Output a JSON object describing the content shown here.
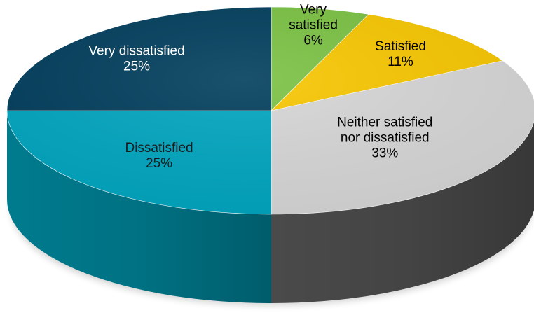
{
  "chart_data": {
    "type": "pie",
    "style": "3d",
    "start_angle_deg": 0,
    "direction": "clockwise",
    "slices": [
      {
        "name_lines": [
          "Very",
          "satisfied"
        ],
        "value": 6,
        "label": "6%",
        "color": "#7ac143",
        "side_color": "#4f8a22",
        "text_color": "#000000"
      },
      {
        "name_lines": [
          "Satisfied"
        ],
        "value": 11,
        "label": "11%",
        "color": "#f7c600",
        "side_color": "#b38f00",
        "text_color": "#000000"
      },
      {
        "name_lines": [
          "Neither satisfied",
          "nor dissatisfied"
        ],
        "value": 33,
        "label": "33%",
        "color": "#d6d6d6",
        "side_color": "#4a4a4a",
        "text_color": "#000000"
      },
      {
        "name_lines": [
          "Dissatisfied"
        ],
        "value": 25,
        "label": "25%",
        "color": "#00a5bf",
        "side_color": "#007b8e",
        "text_color": "#1a1a1a"
      },
      {
        "name_lines": [
          "Very dissatisfied"
        ],
        "value": 25,
        "label": "25%",
        "color": "#003d5c",
        "side_color": "#002a40",
        "text_color": "#ffffff"
      }
    ]
  }
}
